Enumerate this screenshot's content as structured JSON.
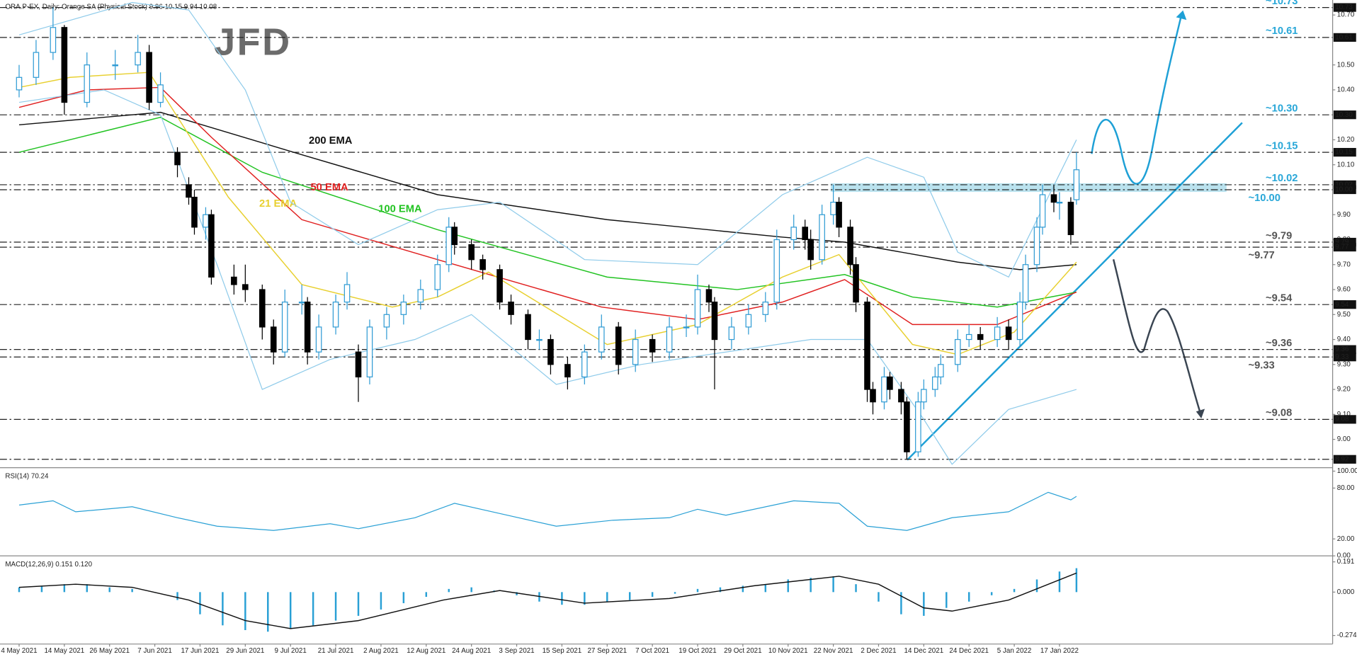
{
  "chart_data": [
    {
      "type": "candlestick",
      "title": "ORA.P-EX, Daily: Orange SA (Physical Stock)  9.96 10.15 9.94 10.08",
      "logo": "JFD",
      "up_color": "#ffffff",
      "up_border": "#2f9bd4",
      "down_color": "#000000",
      "xlim": [
        -3.38,
        232
      ],
      "ylim": [
        8.89,
        10.76
      ],
      "xticks": [
        {
          "value": 0,
          "label": "4 May 2021"
        },
        {
          "value": 8,
          "label": "14 May 2021"
        },
        {
          "value": 16,
          "label": "26 May 2021"
        },
        {
          "value": 24,
          "label": "7 Jun 2021"
        },
        {
          "value": 32,
          "label": "17 Jun 2021"
        },
        {
          "value": 40,
          "label": "29 Jun 2021"
        },
        {
          "value": 48,
          "label": "9 Jul 2021"
        },
        {
          "value": 56,
          "label": "21 Jul 2021"
        },
        {
          "value": 64,
          "label": "2 Aug 2021"
        },
        {
          "value": 72,
          "label": "12 Aug 2021"
        },
        {
          "value": 80,
          "label": "24 Aug 2021"
        },
        {
          "value": 88,
          "label": "3 Sep 2021"
        },
        {
          "value": 96,
          "label": "15 Sep 2021"
        },
        {
          "value": 104,
          "label": "27 Sep 2021"
        },
        {
          "value": 112,
          "label": "7 Oct 2021"
        },
        {
          "value": 120,
          "label": "19 Oct 2021"
        },
        {
          "value": 128,
          "label": "29 Oct 2021"
        },
        {
          "value": 136,
          "label": "10 Nov 2021"
        },
        {
          "value": 144,
          "label": "22 Nov 2021"
        },
        {
          "value": 152,
          "label": "2 Dec 2021"
        },
        {
          "value": 160,
          "label": "14 Dec 2021"
        },
        {
          "value": 168,
          "label": "24 Dec 2021"
        },
        {
          "value": 176,
          "label": "5 Jan 2022"
        },
        {
          "value": 184,
          "label": "17 Jan 2022"
        }
      ],
      "yticks": [
        {
          "value": 9.0,
          "label": "9.00"
        },
        {
          "value": 9.1,
          "label": "9.10"
        },
        {
          "value": 9.2,
          "label": "9.20"
        },
        {
          "value": 9.3,
          "label": "9.30"
        },
        {
          "value": 9.4,
          "label": "9.40"
        },
        {
          "value": 9.5,
          "label": "9.50"
        },
        {
          "value": 9.6,
          "label": "9.60"
        },
        {
          "value": 9.7,
          "label": "9.70"
        },
        {
          "value": 9.8,
          "label": "9.80"
        },
        {
          "value": 9.9,
          "label": "9.90"
        },
        {
          "value": 10.1,
          "label": "10.10"
        },
        {
          "value": 10.2,
          "label": "10.20"
        },
        {
          "value": 10.4,
          "label": "10.40"
        },
        {
          "value": 10.5,
          "label": "10.50"
        },
        {
          "value": 10.7,
          "label": "10.70"
        }
      ],
      "x": [
        0,
        3,
        6,
        8,
        12,
        17,
        21,
        23,
        25,
        28,
        30,
        31,
        33,
        34,
        38,
        40,
        43,
        45,
        47,
        50,
        51,
        53,
        56,
        58,
        60,
        62,
        65,
        68,
        71,
        74,
        76,
        77,
        80,
        82,
        85,
        87,
        90,
        92,
        94,
        97,
        100,
        103,
        106,
        109,
        112,
        115,
        118,
        120,
        122,
        123,
        126,
        129,
        132,
        134,
        137,
        139,
        140,
        142,
        144,
        145,
        147,
        148,
        150,
        151,
        153,
        154,
        156,
        157,
        159,
        160,
        162,
        163,
        166,
        168,
        170,
        173,
        175,
        177,
        178,
        180,
        181,
        183,
        184,
        186,
        187
      ],
      "open": [
        10.4,
        10.45,
        10.55,
        10.65,
        10.35,
        10.5,
        10.5,
        10.55,
        10.35,
        10.15,
        10.02,
        9.97,
        9.85,
        9.9,
        9.65,
        9.62,
        9.6,
        9.45,
        9.35,
        9.55,
        9.55,
        9.35,
        9.45,
        9.55,
        9.35,
        9.25,
        9.45,
        9.5,
        9.55,
        9.6,
        9.7,
        9.85,
        9.78,
        9.72,
        9.68,
        9.55,
        9.5,
        9.4,
        9.4,
        9.3,
        9.25,
        9.35,
        9.45,
        9.3,
        9.4,
        9.35,
        9.45,
        9.45,
        9.6,
        9.55,
        9.4,
        9.45,
        9.5,
        9.55,
        9.8,
        9.85,
        9.8,
        9.72,
        9.9,
        9.95,
        9.85,
        9.7,
        9.55,
        9.2,
        9.15,
        9.25,
        9.2,
        9.15,
        8.95,
        9.15,
        9.2,
        9.25,
        9.3,
        9.4,
        9.42,
        9.4,
        9.45,
        9.4,
        9.55,
        9.7,
        9.85,
        9.98,
        9.95,
        9.95,
        9.96
      ],
      "high": [
        10.5,
        10.6,
        10.73,
        10.66,
        10.55,
        10.56,
        10.62,
        10.58,
        10.47,
        10.17,
        10.05,
        10.0,
        9.93,
        9.92,
        9.7,
        9.7,
        9.62,
        9.48,
        9.6,
        9.62,
        9.57,
        9.5,
        9.58,
        9.67,
        9.38,
        9.48,
        9.53,
        9.58,
        9.64,
        9.74,
        9.89,
        9.87,
        9.8,
        9.74,
        9.7,
        9.58,
        9.52,
        9.44,
        9.42,
        9.33,
        9.38,
        9.5,
        9.47,
        9.44,
        9.42,
        9.49,
        9.5,
        9.66,
        9.62,
        9.57,
        9.49,
        9.54,
        9.59,
        9.84,
        9.9,
        9.88,
        9.84,
        9.94,
        10.02,
        9.97,
        9.88,
        9.73,
        9.57,
        9.23,
        9.29,
        9.27,
        9.23,
        9.17,
        9.19,
        9.24,
        9.29,
        9.34,
        9.44,
        9.46,
        9.45,
        9.49,
        9.48,
        9.59,
        9.74,
        9.89,
        10.02,
        10.02,
        9.99,
        9.97,
        10.15
      ],
      "low": [
        10.37,
        10.42,
        10.52,
        10.3,
        10.33,
        10.44,
        10.47,
        10.32,
        10.33,
        10.05,
        9.94,
        9.82,
        9.8,
        9.62,
        9.58,
        9.55,
        9.4,
        9.3,
        9.33,
        9.5,
        9.3,
        9.32,
        9.42,
        9.52,
        9.15,
        9.22,
        9.4,
        9.46,
        9.52,
        9.57,
        9.67,
        9.74,
        9.68,
        9.64,
        9.52,
        9.46,
        9.36,
        9.36,
        9.26,
        9.2,
        9.22,
        9.32,
        9.26,
        9.27,
        9.31,
        9.32,
        9.41,
        9.42,
        9.51,
        9.2,
        9.36,
        9.42,
        9.47,
        9.52,
        9.76,
        9.76,
        9.68,
        9.7,
        9.86,
        9.81,
        9.66,
        9.51,
        9.15,
        9.1,
        9.12,
        9.16,
        9.1,
        8.92,
        8.93,
        9.12,
        9.17,
        9.22,
        9.27,
        9.37,
        9.36,
        9.37,
        9.36,
        9.37,
        9.52,
        9.67,
        9.82,
        9.91,
        9.88,
        9.78,
        9.94
      ],
      "close": [
        10.45,
        10.55,
        10.65,
        10.35,
        10.5,
        10.5,
        10.55,
        10.35,
        10.42,
        10.1,
        9.97,
        9.85,
        9.9,
        9.65,
        9.62,
        9.6,
        9.45,
        9.35,
        9.55,
        9.55,
        9.35,
        9.45,
        9.55,
        9.62,
        9.25,
        9.45,
        9.5,
        9.55,
        9.6,
        9.7,
        9.85,
        9.78,
        9.72,
        9.68,
        9.55,
        9.5,
        9.4,
        9.4,
        9.3,
        9.25,
        9.35,
        9.45,
        9.3,
        9.4,
        9.35,
        9.45,
        9.45,
        9.6,
        9.55,
        9.4,
        9.45,
        9.5,
        9.55,
        9.8,
        9.85,
        9.8,
        9.72,
        9.9,
        9.95,
        9.85,
        9.7,
        9.55,
        9.2,
        9.15,
        9.25,
        9.2,
        9.15,
        8.95,
        9.15,
        9.2,
        9.25,
        9.3,
        9.4,
        9.42,
        9.4,
        9.45,
        9.4,
        9.55,
        9.7,
        9.85,
        9.98,
        9.95,
        9.95,
        9.82,
        10.08
      ],
      "overlays": [
        {
          "name": "200 EMA",
          "color": "#111111",
          "x": [
            0,
            25,
            50,
            74,
            104,
            135,
            146,
            166,
            177,
            187
          ],
          "values": [
            10.26,
            10.31,
            10.14,
            9.98,
            9.88,
            9.81,
            9.79,
            9.71,
            9.68,
            9.7
          ]
        },
        {
          "name": "100 EMA",
          "color": "#22c322",
          "x": [
            0,
            25,
            43,
            74,
            104,
            127,
            146,
            158,
            173,
            187
          ],
          "values": [
            10.15,
            10.29,
            10.07,
            9.84,
            9.65,
            9.6,
            9.66,
            9.57,
            9.53,
            9.59
          ]
        },
        {
          "name": "50 EMA",
          "color": "#e02020",
          "x": [
            0,
            12,
            25,
            34,
            50,
            74,
            103,
            120,
            135,
            146,
            158,
            173,
            187
          ],
          "values": [
            10.33,
            10.4,
            10.41,
            10.21,
            9.88,
            9.72,
            9.53,
            9.48,
            9.55,
            9.64,
            9.46,
            9.46,
            9.59
          ]
        },
        {
          "name": "21 EMA",
          "color": "#e8d030",
          "x": [
            0,
            9,
            23,
            37,
            50,
            66,
            74,
            83,
            104,
            120,
            135,
            145,
            158,
            166,
            176,
            187
          ],
          "values": [
            10.41,
            10.45,
            10.47,
            9.97,
            9.62,
            9.53,
            9.57,
            9.67,
            9.38,
            9.46,
            9.65,
            9.74,
            9.38,
            9.34,
            9.43,
            9.71
          ]
        },
        {
          "color": "#8fcbea",
          "x": [
            0,
            20,
            30,
            40,
            48,
            60,
            74,
            85,
            100,
            120,
            135,
            142,
            150,
            160,
            166,
            175,
            187
          ],
          "values": [
            10.62,
            10.75,
            10.72,
            10.4,
            9.95,
            9.78,
            9.92,
            9.95,
            9.72,
            9.7,
            9.98,
            10.05,
            10.13,
            10.05,
            9.75,
            9.65,
            10.2
          ]
        },
        {
          "color": "#8fcbea",
          "x": [
            0,
            15,
            25,
            35,
            43,
            55,
            70,
            80,
            95,
            110,
            125,
            140,
            150,
            160,
            165,
            175,
            187
          ],
          "values": [
            10.35,
            10.4,
            10.3,
            9.7,
            9.2,
            9.32,
            9.4,
            9.5,
            9.22,
            9.3,
            9.35,
            9.4,
            9.4,
            9.08,
            8.9,
            9.12,
            9.2
          ]
        }
      ],
      "levels": [
        {
          "value": 10.73,
          "label": "~10.73",
          "tag": "10.73",
          "color": "#29a7d8"
        },
        {
          "value": 10.61,
          "label": "~10.61",
          "tag": "10.61",
          "color": "#29a7d8"
        },
        {
          "value": 10.3,
          "label": "~10.30",
          "tag": "10.30",
          "color": "#29a7d8"
        },
        {
          "value": 10.15,
          "label": "~10.15",
          "tag": "10.15",
          "color": "#29a7d8"
        },
        {
          "value": 10.02,
          "label": "~10.02",
          "tag": "10.02",
          "color": "#29a7d8"
        },
        {
          "value": 10.0,
          "label": "~10.00",
          "tag": "10.00",
          "color": "#29a7d8"
        },
        {
          "value": 9.79,
          "label": "~9.79",
          "tag": "9.79",
          "color": "#555555"
        },
        {
          "value": 9.77,
          "label": "~9.77",
          "tag": "9.77",
          "color": "#555555"
        },
        {
          "value": 9.54,
          "label": "~9.54",
          "tag": "9.54",
          "color": "#555555"
        },
        {
          "value": 9.36,
          "label": "~9.36",
          "tag": "9.36",
          "color": "#555555"
        },
        {
          "value": 9.33,
          "label": "~9.33",
          "tag": "9.33",
          "color": "#555555"
        },
        {
          "value": 9.08,
          "label": "~9.08",
          "tag": "9.08",
          "color": "#555555"
        },
        {
          "value": 8.92,
          "tag": "8.92",
          "color": "#555555"
        }
      ]
    },
    {
      "type": "line",
      "title": "RSI(14) 70.24",
      "color": "#29a0d5",
      "xlim": [
        -3.38,
        232
      ],
      "ylim": [
        0,
        100
      ],
      "yticks": [
        {
          "value": 100,
          "label": "100.00"
        },
        {
          "value": 80,
          "label": "80.00"
        },
        {
          "value": 20,
          "label": "20.00"
        },
        {
          "value": 0,
          "label": "0.00"
        }
      ],
      "x": [
        0,
        6,
        10,
        20,
        28,
        35,
        45,
        55,
        60,
        70,
        77,
        85,
        95,
        105,
        115,
        120,
        125,
        137,
        145,
        150,
        157,
        165,
        175,
        182,
        186,
        187
      ],
      "values": [
        60,
        65,
        52,
        58,
        45,
        35,
        30,
        38,
        32,
        45,
        62,
        50,
        35,
        42,
        45,
        55,
        48,
        65,
        62,
        35,
        30,
        45,
        52,
        75,
        66,
        70.24
      ]
    },
    {
      "type": "macd",
      "title": "MACD(12,26,9) 0.151 0.120",
      "xlim": [
        -3.38,
        232
      ],
      "ylim": [
        -0.328,
        0.218
      ],
      "yticks": [
        0.191,
        {
          "value": 0,
          "label": "0.000"
        },
        -0.274
      ],
      "series": [
        {
          "color": "#29a0d5",
          "x": [
            0,
            4,
            8,
            12,
            16,
            20,
            24,
            28,
            32,
            36,
            40,
            44,
            48,
            52,
            56,
            60,
            64,
            68,
            72,
            76,
            80,
            84,
            88,
            92,
            96,
            100,
            104,
            108,
            112,
            116,
            120,
            124,
            128,
            132,
            136,
            140,
            144,
            148,
            152,
            156,
            160,
            164,
            168,
            172,
            176,
            180,
            184,
            187
          ],
          "values": [
            0.03,
            0.04,
            0.05,
            0.05,
            0.03,
            0.02,
            0,
            -0.05,
            -0.14,
            -0.21,
            -0.24,
            -0.25,
            -0.23,
            -0.21,
            -0.18,
            -0.15,
            -0.11,
            -0.07,
            -0.03,
            0.02,
            0.03,
            0.01,
            -0.02,
            -0.06,
            -0.08,
            -0.08,
            -0.06,
            -0.05,
            -0.03,
            -0.01,
            0.02,
            0.03,
            0.04,
            0.05,
            0.08,
            0.09,
            0.1,
            0.05,
            -0.06,
            -0.14,
            -0.15,
            -0.1,
            -0.06,
            -0.02,
            0.02,
            0.08,
            0.13,
            0.151
          ]
        },
        {
          "color": "#111111",
          "x": [
            0,
            10,
            20,
            30,
            40,
            48,
            60,
            75,
            85,
            100,
            115,
            130,
            145,
            152,
            160,
            165,
            175,
            187
          ],
          "values": [
            0.03,
            0.05,
            0.03,
            -0.05,
            -0.18,
            -0.23,
            -0.18,
            -0.05,
            0.01,
            -0.07,
            -0.04,
            0.04,
            0.1,
            0.05,
            -0.1,
            -0.12,
            -0.05,
            0.12
          ]
        }
      ]
    }
  ]
}
